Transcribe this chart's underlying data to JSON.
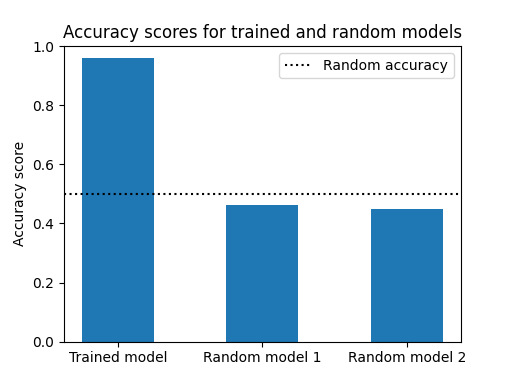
{
  "title": "Accuracy scores for trained and random models",
  "categories": [
    "Trained model",
    "Random model 1",
    "Random model 2"
  ],
  "values": [
    0.961,
    0.464,
    0.448
  ],
  "bar_color": "#1f77b4",
  "ylabel": "Accuracy score",
  "ylim": [
    0.0,
    1.0
  ],
  "yticks": [
    0.0,
    0.2,
    0.4,
    0.6,
    0.8,
    1.0
  ],
  "random_accuracy_line": 0.5,
  "random_accuracy_label": "Random accuracy",
  "line_style": "dotted",
  "line_color": "black",
  "figsize": [
    5.12,
    3.84
  ],
  "dpi": 100,
  "bar_width": 0.5
}
